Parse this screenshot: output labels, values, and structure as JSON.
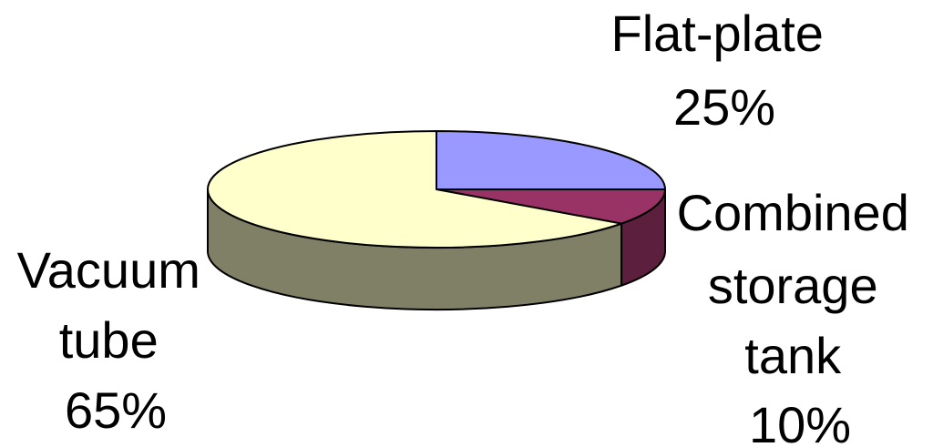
{
  "chart_data": {
    "type": "pie",
    "style": "3d",
    "slices": [
      {
        "label_lines": [
          "Flat-plate",
          "25%"
        ],
        "value": 25,
        "color": "#9999ff",
        "side_color": "#5c5c99"
      },
      {
        "label_lines": [
          "Combined",
          "storage",
          "tank",
          "10%"
        ],
        "value": 10,
        "color": "#993366",
        "side_color": "#5c1f3d"
      },
      {
        "label_lines": [
          "Vacuum",
          "tube",
          "65%"
        ],
        "value": 65,
        "color": "#ffffcc",
        "side_color": "#808066"
      }
    ]
  }
}
